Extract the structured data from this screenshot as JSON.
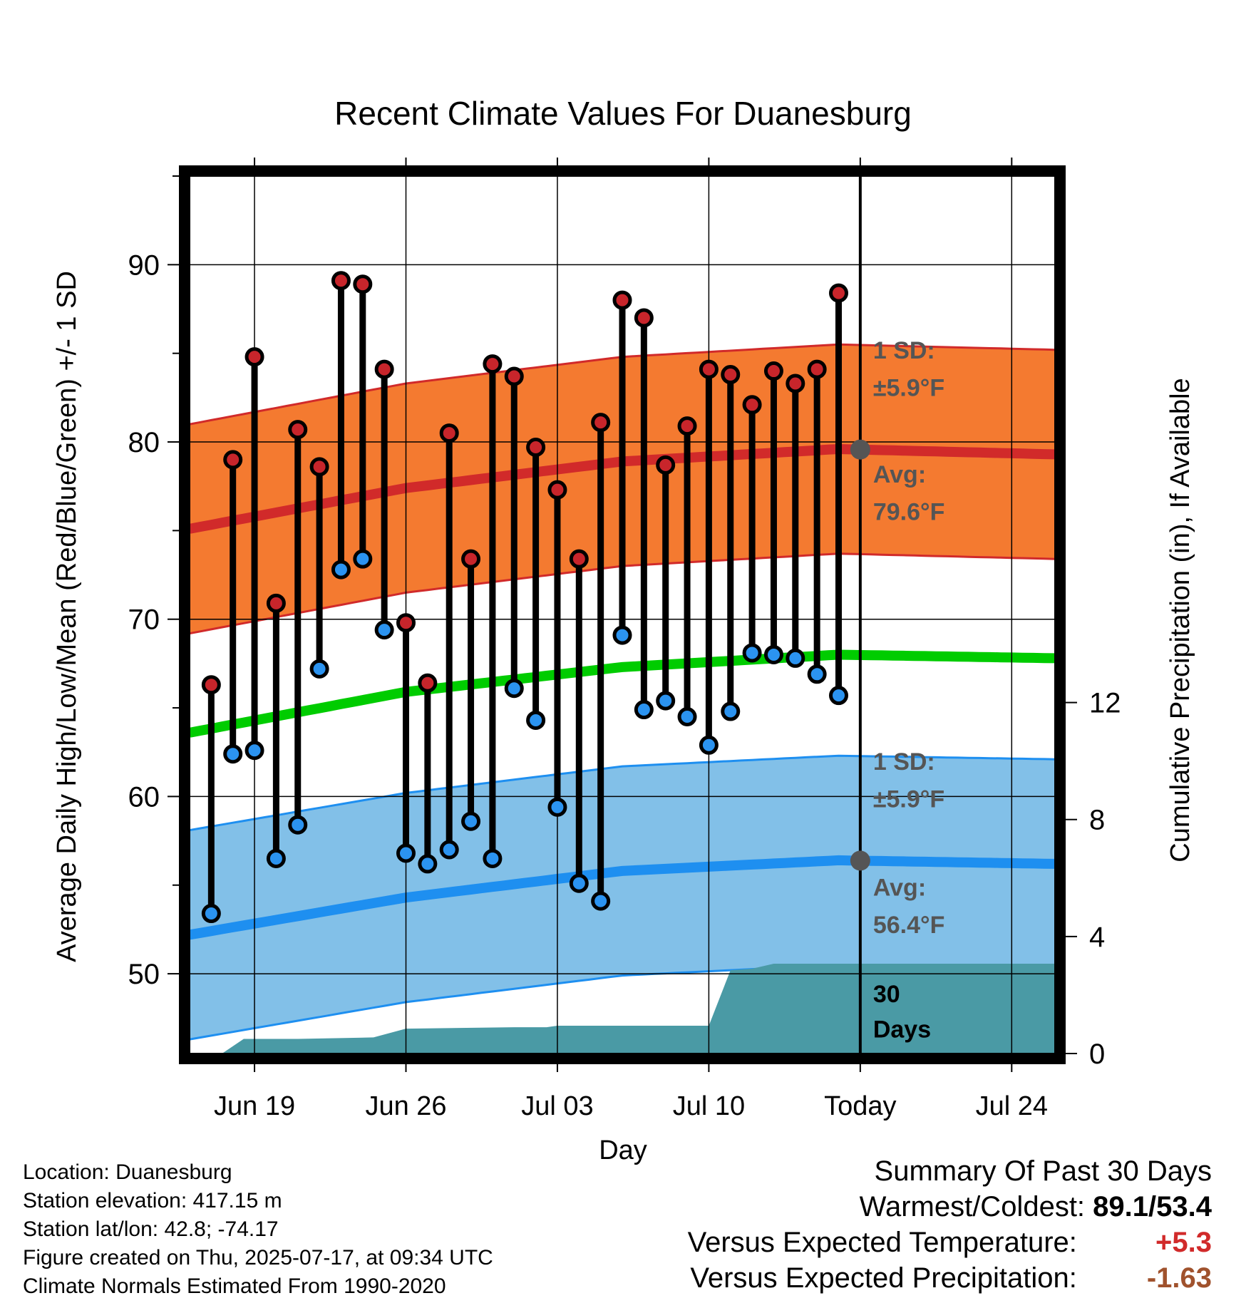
{
  "chart_data": {
    "type": "line",
    "title": "Recent Climate Values For Duanesburg",
    "xlabel": "Day",
    "ylabel_left": "Average Daily High/Low/Mean (Red/Blue/Green) +/- 1 SD",
    "ylabel_right": "Cumulative Precipitation (in), If Available",
    "x_ticks": [
      "Jun 19",
      "Jun 26",
      "Jul 03",
      "Jul 10",
      "Today",
      "Jul 24"
    ],
    "x_tick_days": [
      3,
      10,
      17,
      24,
      31,
      38
    ],
    "x_range_days": [
      0,
      40
    ],
    "today_day": 31,
    "ylim": [
      45.5,
      95
    ],
    "y_ticks": [
      50,
      60,
      70,
      80,
      90
    ],
    "y_minor_step": 5,
    "y2lim": [
      0,
      30
    ],
    "y2_ticks": [
      0,
      4,
      8,
      12
    ],
    "grid": true,
    "days": [
      1,
      2,
      3,
      4,
      5,
      6,
      7,
      8,
      9,
      10,
      11,
      12,
      13,
      14,
      15,
      16,
      17,
      18,
      19,
      20,
      21,
      22,
      23,
      24,
      25,
      26,
      27,
      28,
      29,
      30
    ],
    "daily_high": [
      66.3,
      79.0,
      84.8,
      70.9,
      80.7,
      78.6,
      89.1,
      88.9,
      84.1,
      69.8,
      66.4,
      80.5,
      73.4,
      84.4,
      83.7,
      79.7,
      77.3,
      73.4,
      81.1,
      88.0,
      87.0,
      78.7,
      80.9,
      84.1,
      83.8,
      82.1,
      84.0,
      83.3,
      84.1,
      88.4
    ],
    "daily_low": [
      53.4,
      62.4,
      62.6,
      56.5,
      58.4,
      67.2,
      72.8,
      73.4,
      69.4,
      56.8,
      56.2,
      57.0,
      58.6,
      56.5,
      66.1,
      64.3,
      59.4,
      55.1,
      54.1,
      69.1,
      64.9,
      65.4,
      64.5,
      62.9,
      64.8,
      68.1,
      68.0,
      67.8,
      66.9,
      65.7
    ],
    "normal_high": {
      "day": [
        0,
        10,
        20,
        30,
        40
      ],
      "avg": [
        75.1,
        77.4,
        78.9,
        79.6,
        79.3
      ],
      "sd": 5.9
    },
    "normal_low": {
      "day": [
        0,
        10,
        20,
        30,
        40
      ],
      "avg": [
        52.2,
        54.3,
        55.8,
        56.4,
        56.2
      ],
      "sd": 5.9
    },
    "normal_mean": {
      "day": [
        0,
        10,
        20,
        30,
        40
      ],
      "avg": [
        63.6,
        65.9,
        67.3,
        68.0,
        67.8
      ]
    },
    "precip_cumulative": {
      "day": [
        0,
        1.5,
        2.5,
        5,
        8.5,
        10,
        15,
        16.5,
        17,
        24,
        25,
        26,
        27,
        40
      ],
      "value": [
        0,
        0,
        0.5,
        0.5,
        0.55,
        0.85,
        0.9,
        0.9,
        0.95,
        0.95,
        2.85,
        2.9,
        3.07,
        3.07
      ]
    },
    "annotations": {
      "high_sd_label": "1 SD:",
      "high_sd_value": "±5.9°F",
      "high_avg_label": "Avg:",
      "high_avg_value": "79.6°F",
      "low_sd_label": "1 SD:",
      "low_sd_value": "±5.9°F",
      "low_avg_label": "Avg:",
      "low_avg_value": "56.4°F",
      "window_label_1": "30",
      "window_label_2": "Days"
    },
    "colors": {
      "high_band": "#f47a30",
      "high_line": "#d12a2a",
      "low_band": "#82c0e8",
      "low_line": "#1e8ff0",
      "mean_line": "#00cc00",
      "precip": "#4a9aa5",
      "high_marker": "#c8252b",
      "low_marker": "#2b93f0",
      "annotation": "#555555"
    }
  },
  "footer": {
    "location": "Location: Duanesburg",
    "elevation": "Station elevation: 417.15 m",
    "latlon": "Station lat/lon: 42.8; -74.17",
    "created": "Figure created on Thu, 2025-07-17, at 09:34 UTC",
    "normals": "Climate Normals Estimated From 1990-2020"
  },
  "summary": {
    "title": "Summary Of Past 30 Days",
    "warm_cold_label": "Warmest/Coldest:",
    "warm_cold_value": "89.1/53.4",
    "temp_label": "Versus Expected Temperature:",
    "temp_value": "+5.3",
    "temp_color": "#d12a2a",
    "precip_label": "Versus Expected Precipitation:",
    "precip_value": "-1.63",
    "precip_color": "#a0522d"
  }
}
